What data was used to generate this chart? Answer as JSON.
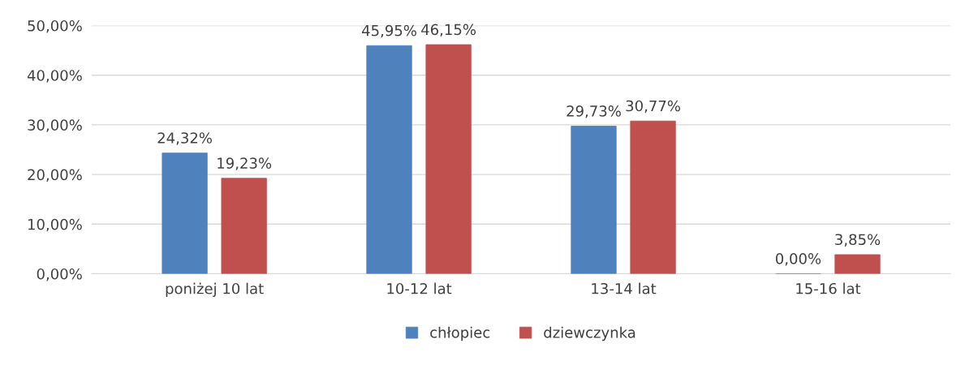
{
  "chart_data": {
    "type": "bar",
    "categories": [
      "poniżej 10 lat",
      "10-12 lat",
      "13-14 lat",
      "15-16 lat"
    ],
    "series": [
      {
        "name": "chłopiec",
        "color": "#4f81bd",
        "values": [
          24.32,
          45.95,
          29.73,
          0.0
        ],
        "value_labels": [
          "24,32%",
          "45,95%",
          "29,73%",
          "0,00%"
        ]
      },
      {
        "name": "dziewczynka",
        "color": "#c0504d",
        "values": [
          19.23,
          46.15,
          30.77,
          3.85
        ],
        "value_labels": [
          "19,23%",
          "46,15%",
          "30,77%",
          "3,85%"
        ]
      }
    ],
    "ylim": [
      0,
      50
    ],
    "yticks": [
      {
        "value": 0,
        "label": "0,00%"
      },
      {
        "value": 10,
        "label": "10,00%"
      },
      {
        "value": 20,
        "label": "20,00%"
      },
      {
        "value": 30,
        "label": "30,00%"
      },
      {
        "value": 40,
        "label": "40,00%"
      },
      {
        "value": 50,
        "label": "50,00%"
      }
    ],
    "grid": "y",
    "legend": "bottom"
  }
}
